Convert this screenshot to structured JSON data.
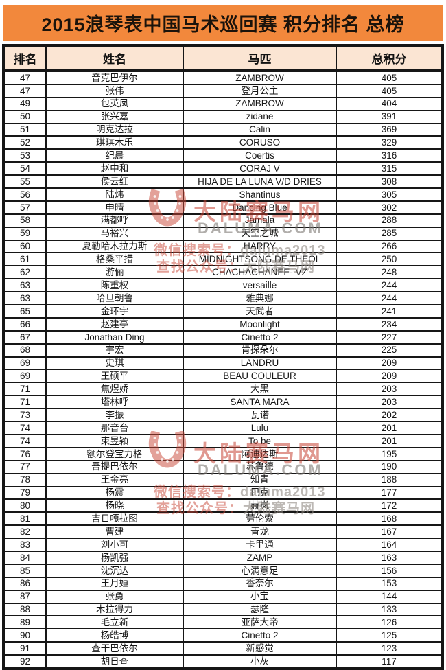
{
  "title": "2015浪琴表中国马术巡回赛 积分排名 总榜",
  "table": {
    "columns": [
      "排名",
      "姓名",
      "马匹",
      "总积分"
    ],
    "rows": [
      [
        "47",
        "音克巴伊尔",
        "ZAMBROW",
        "405"
      ],
      [
        "47",
        "张伟",
        "登月公主",
        "405"
      ],
      [
        "49",
        "包英凤",
        "ZAMBROW",
        "404"
      ],
      [
        "50",
        "张兴嘉",
        "zidane",
        "391"
      ],
      [
        "51",
        "明克达拉",
        "Calin",
        "369"
      ],
      [
        "52",
        "琪琪木乐",
        "CORUSO",
        "329"
      ],
      [
        "53",
        "纪晨",
        "Coertis",
        "316"
      ],
      [
        "54",
        "赵中和",
        "CORAJ V",
        "315"
      ],
      [
        "55",
        "侯云红",
        "HIJA DE LA LUNA V/D DRIES",
        "308"
      ],
      [
        "56",
        "陆炜",
        "Shantinus",
        "305"
      ],
      [
        "57",
        "申晴",
        "Dancing Blue",
        "302"
      ],
      [
        "58",
        "满都呼",
        "Jamala",
        "288"
      ],
      [
        "59",
        "马裕兴",
        "天空之城",
        "285"
      ],
      [
        "60",
        "夏勒哈木拉力斯",
        "HARRY",
        "266"
      ],
      [
        "61",
        "格桑平措",
        "MIDNIGHTSONG DE THEOL",
        "250"
      ],
      [
        "62",
        "游俪",
        "CHACHACHANEE- VZ",
        "248"
      ],
      [
        "63",
        "陈重权",
        "versaille",
        "244"
      ],
      [
        "63",
        "哈旦朝鲁",
        "雅典娜",
        "244"
      ],
      [
        "65",
        "金环宇",
        "天武者",
        "241"
      ],
      [
        "66",
        "赵建亭",
        "Moonlight",
        "234"
      ],
      [
        "67",
        "Jonathan Ding",
        "Cinetto 2",
        "227"
      ],
      [
        "68",
        "宇宏",
        "肯探朵尔",
        "225"
      ],
      [
        "69",
        "史琪",
        "LANDRU",
        "209"
      ],
      [
        "69",
        "王硕平",
        "BEAU COULEUR",
        "209"
      ],
      [
        "71",
        "焦煜娇",
        "大黑",
        "203"
      ],
      [
        "71",
        "塔林呼",
        "SANTA MARA",
        "203"
      ],
      [
        "73",
        "李振",
        "瓦诺",
        "202"
      ],
      [
        "74",
        "那音台",
        "Lulu",
        "201"
      ],
      [
        "74",
        "束昱颖",
        "To be",
        "201"
      ],
      [
        "76",
        "额尔登宝力格",
        "阿迪达斯",
        "195"
      ],
      [
        "77",
        "吾提巴依尔",
        "苏鲁德",
        "190"
      ],
      [
        "78",
        "王金亮",
        "知青",
        "188"
      ],
      [
        "79",
        "杨震",
        "巴克",
        "177"
      ],
      [
        "80",
        "杨晓",
        "赫岚",
        "172"
      ],
      [
        "81",
        "吉日嘎拉图",
        "劳伦索",
        "168"
      ],
      [
        "82",
        "曹建",
        "青龙",
        "167"
      ],
      [
        "83",
        "刘小可",
        "卡里通",
        "164"
      ],
      [
        "84",
        "杨凯强",
        "ZAMP",
        "163"
      ],
      [
        "85",
        "沈沉达",
        "心满意足",
        "156"
      ],
      [
        "86",
        "王月姮",
        "香奈尔",
        "153"
      ],
      [
        "87",
        "张勇",
        "小宝",
        "144"
      ],
      [
        "88",
        "木拉得力",
        "瑟隆",
        "133"
      ],
      [
        "89",
        "毛立新",
        "亚萨大帝",
        "126"
      ],
      [
        "90",
        "杨皓博",
        "Cinetto 2",
        "125"
      ],
      [
        "91",
        "查干巴依尔",
        "新感觉",
        "123"
      ],
      [
        "92",
        "胡日查",
        "小灰",
        "117"
      ]
    ]
  },
  "watermark": {
    "logo": "horseshoe-icon",
    "site_name": "大陆赛马网",
    "site_domain": "DALUMA.COM",
    "wechat_label": "微信搜索号：",
    "wechat_value": "daluma2013",
    "account_label": "查找公众号：",
    "account_value": "大陆赛马网"
  },
  "colors": {
    "banner_orange": "#F2883C",
    "header_peach": "#FBE5D3",
    "border_black": "#161616",
    "watermark_red": "#C74434",
    "watermark_gray": "#8C847E"
  }
}
